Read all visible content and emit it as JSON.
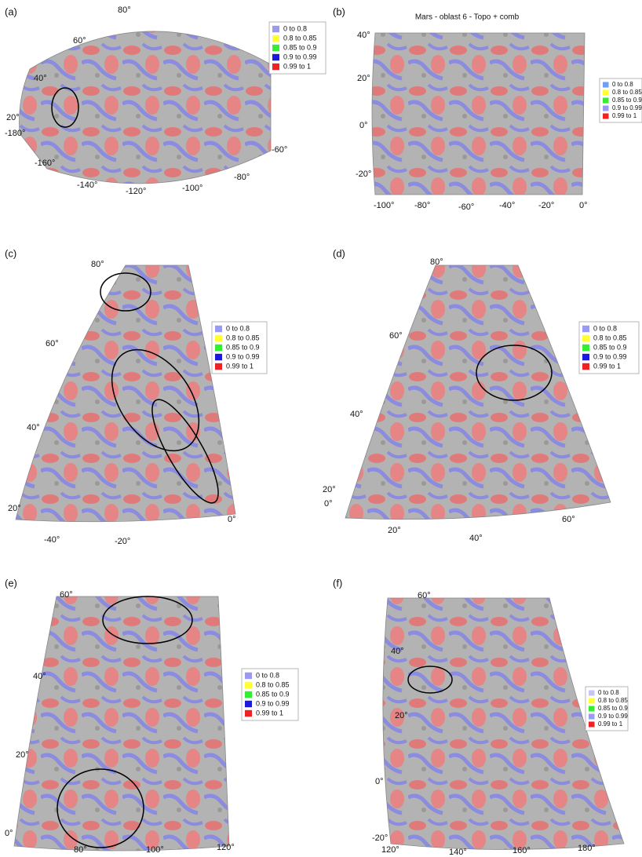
{
  "panels": [
    {
      "label": "(a)",
      "axis_labels": [
        "80°",
        "60°",
        "40°",
        "20°",
        "-180°",
        "-160°",
        "-140°",
        "-120°",
        "-100°",
        "-80°",
        "-60°"
      ],
      "legend": [
        {
          "text": "0  to  0.8",
          "color": "#9a9af2"
        },
        {
          "text": "0.8  to  0.85",
          "color": "#ffff33"
        },
        {
          "text": "0.85  to  0.9",
          "color": "#33ee33"
        },
        {
          "text": "0.9  to  0.99",
          "color": "#1a1add"
        },
        {
          "text": "0.99  to  1",
          "color": "#ee2222"
        }
      ]
    },
    {
      "label": "(b)",
      "title": "Mars - oblast 6 - Topo + comb",
      "axis_labels": [
        "40°",
        "20°",
        "0°",
        "-20°",
        "-100°",
        "-80°",
        "-60°",
        "-40°",
        "-20°",
        "0°"
      ],
      "legend": [
        {
          "text": "0  to  0.8",
          "color": "#6f9ff2"
        },
        {
          "text": "0.8  to  0.85",
          "color": "#ffff33"
        },
        {
          "text": "0.85  to  0.9",
          "color": "#33ee33"
        },
        {
          "text": "0.9  to  0.99",
          "color": "#9a9af2"
        },
        {
          "text": "0.99  to  1",
          "color": "#ee2222"
        }
      ]
    },
    {
      "label": "(c)",
      "axis_labels": [
        "80°",
        "60°",
        "40°",
        "20°",
        "0°",
        "-40°",
        "-20°"
      ],
      "legend": [
        {
          "text": "0  to  0.8",
          "color": "#9a9af2"
        },
        {
          "text": "0.8  to  0.85",
          "color": "#ffff33"
        },
        {
          "text": "0.85  to  0.9",
          "color": "#33ee33"
        },
        {
          "text": "0.9  to  0.99",
          "color": "#1a1add"
        },
        {
          "text": "0.99  to  1",
          "color": "#ee2222"
        }
      ]
    },
    {
      "label": "(d)",
      "axis_labels": [
        "80°",
        "60°",
        "40°",
        "20°",
        "0°",
        "20°",
        "40°",
        "60°"
      ],
      "legend": [
        {
          "text": "0  to  0.8",
          "color": "#9a9af2"
        },
        {
          "text": "0.8  to  0.85",
          "color": "#ffff33"
        },
        {
          "text": "0.85  to  0.9",
          "color": "#33ee33"
        },
        {
          "text": "0.9  to  0.99",
          "color": "#1a1add"
        },
        {
          "text": "0.99  to  1",
          "color": "#ee2222"
        }
      ]
    },
    {
      "label": "(e)",
      "axis_labels": [
        "60°",
        "40°",
        "20°",
        "0°",
        "80°",
        "100°",
        "120°"
      ],
      "legend": [
        {
          "text": "0  to  0.8",
          "color": "#9a9af2"
        },
        {
          "text": "0.8  to  0.85",
          "color": "#ffff33"
        },
        {
          "text": "0.85  to  0.9",
          "color": "#33ee33"
        },
        {
          "text": "0.9  to  0.99",
          "color": "#1a1add"
        },
        {
          "text": "0.99  to  1",
          "color": "#ee2222"
        }
      ]
    },
    {
      "label": "(f)",
      "axis_labels": [
        "60°",
        "40°",
        "20°",
        "0°",
        "-20°",
        "120°",
        "140°",
        "160°",
        "180°"
      ],
      "legend": [
        {
          "text": "0  to  0.8",
          "color": "#c4c4f5"
        },
        {
          "text": "0.8  to  0.85",
          "color": "#ffff33"
        },
        {
          "text": "0.85  to  0.9",
          "color": "#33ee33"
        },
        {
          "text": "0.9  to  0.99",
          "color": "#9a9af2"
        },
        {
          "text": "0.99  to  1",
          "color": "#ee2222"
        }
      ]
    }
  ]
}
